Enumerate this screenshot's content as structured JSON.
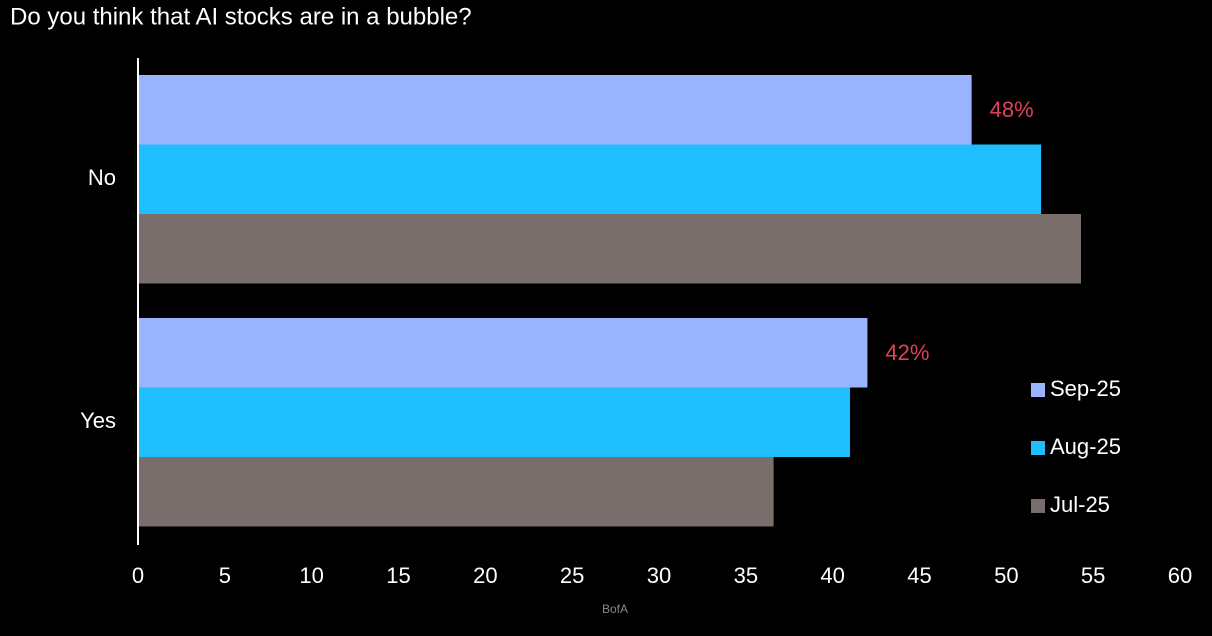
{
  "chart_data": {
    "type": "hbar",
    "title": "Do you think that AI stocks are in a bubble?",
    "categories": [
      "No",
      "Yes"
    ],
    "series": [
      {
        "name": "Sep-25",
        "color": "#99b3ff",
        "values": [
          48,
          42
        ],
        "value_labels": [
          "48%",
          "42%"
        ]
      },
      {
        "name": "Aug-25",
        "color": "#1fbfff",
        "values": [
          52,
          41
        ]
      },
      {
        "name": "Jul-25",
        "color": "#7a6e6c",
        "values": [
          54.3,
          36.6
        ]
      }
    ],
    "xlim": [
      0,
      60
    ],
    "xticks": [
      0,
      5,
      10,
      15,
      20,
      25,
      30,
      35,
      40,
      45,
      50,
      55,
      60
    ],
    "grid": false,
    "legend": "right",
    "label_color": "#e0405e",
    "source": "BofA"
  }
}
